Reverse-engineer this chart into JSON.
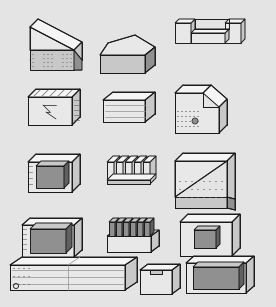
{
  "background_color": "#e4e4e4",
  "line_color": "#1a1a1a",
  "lw": 0.7,
  "fig_width": 2.76,
  "fig_height": 3.07,
  "dpi": 100,
  "colors": {
    "white": "#f5f5f5",
    "light": "#e8e8e8",
    "mid": "#c8c8c8",
    "dark": "#909090",
    "darker": "#606060",
    "hatch": "#555555",
    "black": "#1a1a1a"
  }
}
